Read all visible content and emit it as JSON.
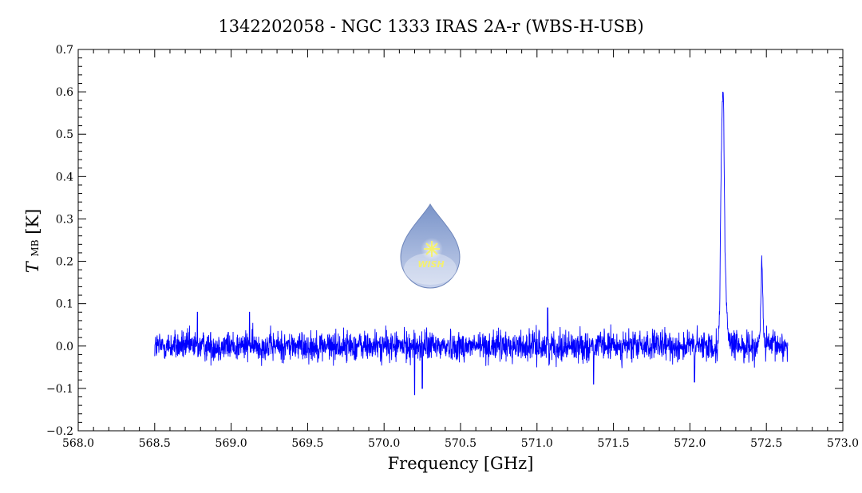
{
  "chart_data": {
    "type": "line",
    "title": "1342202058 - NGC 1333 IRAS 2A-r (WBS-H-USB)",
    "xlabel": "Frequency [GHz]",
    "ylabel": "T",
    "ylabel_sub": "MB",
    "ylabel_unit": "[K]",
    "xlim": [
      568.0,
      573.0
    ],
    "ylim": [
      -0.2,
      0.7
    ],
    "x_ticks": [
      568.0,
      568.5,
      569.0,
      569.5,
      570.0,
      570.5,
      571.0,
      571.5,
      572.0,
      572.5,
      573.0
    ],
    "x_tick_labels": [
      "568.0",
      "568.5",
      "569.0",
      "569.5",
      "570.0",
      "570.5",
      "571.0",
      "571.5",
      "572.0",
      "572.5",
      "573.0"
    ],
    "y_ticks": [
      -0.2,
      -0.1,
      0.0,
      0.1,
      0.2,
      0.3,
      0.4,
      0.5,
      0.6,
      0.7
    ],
    "y_tick_labels": [
      "−0.2",
      "−0.1",
      "0.0",
      "0.1",
      "0.2",
      "0.3",
      "0.4",
      "0.5",
      "0.6",
      "0.7"
    ],
    "grid": false,
    "series": [
      {
        "color": "#0000ff",
        "x_range": [
          568.5,
          572.64
        ],
        "baseline": 0.0,
        "noise_rms": 0.018,
        "points": [
          [
            568.5,
            0.01
          ],
          [
            568.78,
            0.08
          ],
          [
            569.12,
            0.08
          ],
          [
            570.2,
            -0.115
          ],
          [
            570.25,
            -0.1
          ],
          [
            571.07,
            0.09
          ],
          [
            571.37,
            -0.09
          ],
          [
            572.03,
            -0.085
          ],
          [
            572.18,
            0.0
          ],
          [
            572.195,
            0.08
          ],
          [
            572.2,
            0.3
          ],
          [
            572.21,
            0.55
          ],
          [
            572.215,
            0.61
          ],
          [
            572.22,
            0.58
          ],
          [
            572.225,
            0.4
          ],
          [
            572.23,
            0.2
          ],
          [
            572.24,
            0.1
          ],
          [
            572.25,
            0.03
          ],
          [
            572.27,
            0.0
          ],
          [
            572.45,
            0.0
          ],
          [
            572.46,
            0.05
          ],
          [
            572.47,
            0.21
          ],
          [
            572.48,
            0.06
          ],
          [
            572.49,
            0.0
          ],
          [
            572.64,
            0.0
          ]
        ]
      }
    ]
  },
  "watermark": {
    "text": "WISH",
    "color_top": "#7a94c9",
    "color_bottom": "#c7d2ec",
    "star_color": "#f4f070"
  }
}
